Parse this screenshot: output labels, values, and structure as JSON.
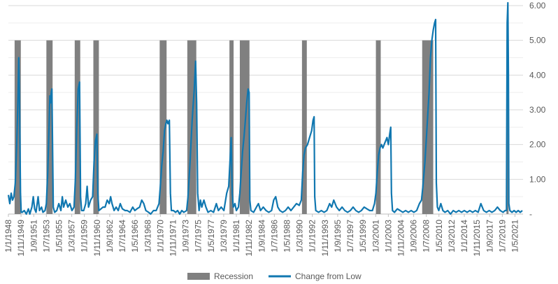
{
  "chart_data": {
    "type": "line",
    "title": "",
    "xlabel": "",
    "ylabel": "",
    "ylim": [
      0,
      6
    ],
    "y_ticks": [
      "6.00",
      "5.00",
      "4.00",
      "3.00",
      "2.00",
      "1.00",
      "-"
    ],
    "y_axis_side": "right",
    "grid": "horizontal",
    "legend_position": "bottom",
    "x_range": [
      1948.0,
      2022.5
    ],
    "x_tick_labels": [
      "1/1/1948",
      "1/11/1949",
      "1/9/1951",
      "1/7/1953",
      "1/5/1955",
      "1/3/1957",
      "1/1/1959",
      "1/11/1960",
      "1/9/1962",
      "1/7/1964",
      "1/5/1966",
      "1/3/1968",
      "1/1/1970",
      "1/11/1971",
      "1/9/1973",
      "1/7/1975",
      "1/5/1977",
      "1/3/1979",
      "1/1/1981",
      "1/11/1982",
      "1/9/1984",
      "1/7/1986",
      "1/5/1988",
      "1/3/1990",
      "1/1/1992",
      "1/11/1993",
      "1/9/1995",
      "1/7/1997",
      "1/5/1999",
      "1/3/2001",
      "1/1/2003",
      "1/11/2004",
      "1/9/2006",
      "1/7/2008",
      "1/5/2010",
      "1/3/2012",
      "1/1/2014",
      "1/11/2015",
      "1/9/2017",
      "1/7/2019",
      "1/5/2021"
    ],
    "x_tick_positions": [
      1948.0,
      1949.83,
      1951.67,
      1953.5,
      1955.33,
      1957.17,
      1959.0,
      1960.83,
      1962.67,
      1964.5,
      1966.33,
      1968.17,
      1970.0,
      1971.83,
      1973.67,
      1975.5,
      1977.33,
      1979.17,
      1981.0,
      1982.83,
      1984.67,
      1986.5,
      1988.33,
      1990.17,
      1992.0,
      1993.83,
      1995.67,
      1997.5,
      1999.33,
      2001.17,
      2003.0,
      2004.83,
      2006.67,
      2008.5,
      2010.33,
      2012.17,
      2014.0,
      2015.83,
      2017.67,
      2019.5,
      2021.33
    ],
    "recessions": [
      {
        "start": 1948.9,
        "end": 1949.8
      },
      {
        "start": 1953.5,
        "end": 1954.4
      },
      {
        "start": 1957.6,
        "end": 1958.4
      },
      {
        "start": 1960.3,
        "end": 1961.1
      },
      {
        "start": 1969.9,
        "end": 1970.9
      },
      {
        "start": 1973.9,
        "end": 1975.2
      },
      {
        "start": 1980.0,
        "end": 1980.6
      },
      {
        "start": 1981.5,
        "end": 1982.9
      },
      {
        "start": 1990.5,
        "end": 1991.2
      },
      {
        "start": 2001.2,
        "end": 2001.9
      },
      {
        "start": 2007.9,
        "end": 2009.5
      },
      {
        "start": 2020.1,
        "end": 2020.4
      }
    ],
    "series": [
      {
        "name": "Change from Low",
        "color": "#1077B0",
        "points": [
          [
            1948.0,
            0.55
          ],
          [
            1948.2,
            0.3
          ],
          [
            1948.4,
            0.6
          ],
          [
            1948.6,
            0.4
          ],
          [
            1948.8,
            0.5
          ],
          [
            1949.0,
            0.9
          ],
          [
            1949.2,
            2.0
          ],
          [
            1949.4,
            3.4
          ],
          [
            1949.5,
            4.5
          ],
          [
            1949.6,
            3.5
          ],
          [
            1949.75,
            0.6
          ],
          [
            1949.85,
            0.05
          ],
          [
            1950.0,
            0.05
          ],
          [
            1950.3,
            0.1
          ],
          [
            1950.6,
            0.0
          ],
          [
            1950.9,
            0.15
          ],
          [
            1951.1,
            0.0
          ],
          [
            1951.4,
            0.2
          ],
          [
            1951.6,
            0.5
          ],
          [
            1951.8,
            0.15
          ],
          [
            1952.0,
            0.05
          ],
          [
            1952.3,
            0.5
          ],
          [
            1952.5,
            0.1
          ],
          [
            1952.8,
            0.2
          ],
          [
            1953.0,
            0.05
          ],
          [
            1953.3,
            0.1
          ],
          [
            1953.5,
            0.3
          ],
          [
            1953.7,
            1.2
          ],
          [
            1953.9,
            2.6
          ],
          [
            1954.0,
            3.4
          ],
          [
            1954.1,
            3.2
          ],
          [
            1954.2,
            3.5
          ],
          [
            1954.3,
            3.6
          ],
          [
            1954.5,
            0.2
          ],
          [
            1954.7,
            0.05
          ],
          [
            1955.0,
            0.1
          ],
          [
            1955.3,
            0.3
          ],
          [
            1955.6,
            0.1
          ],
          [
            1955.8,
            0.5
          ],
          [
            1956.0,
            0.2
          ],
          [
            1956.3,
            0.4
          ],
          [
            1956.6,
            0.2
          ],
          [
            1956.9,
            0.3
          ],
          [
            1957.2,
            0.1
          ],
          [
            1957.5,
            0.2
          ],
          [
            1957.7,
            1.0
          ],
          [
            1957.9,
            2.5
          ],
          [
            1958.1,
            3.6
          ],
          [
            1958.3,
            3.8
          ],
          [
            1958.45,
            0.5
          ],
          [
            1958.6,
            0.1
          ],
          [
            1958.9,
            0.1
          ],
          [
            1959.2,
            0.3
          ],
          [
            1959.4,
            0.8
          ],
          [
            1959.6,
            0.2
          ],
          [
            1959.9,
            0.4
          ],
          [
            1960.2,
            0.5
          ],
          [
            1960.4,
            1.5
          ],
          [
            1960.6,
            2.1
          ],
          [
            1960.8,
            2.3
          ],
          [
            1960.95,
            0.6
          ],
          [
            1961.1,
            0.1
          ],
          [
            1961.4,
            0.15
          ],
          [
            1961.7,
            0.2
          ],
          [
            1962.0,
            0.2
          ],
          [
            1962.3,
            0.4
          ],
          [
            1962.6,
            0.3
          ],
          [
            1962.8,
            0.5
          ],
          [
            1963.0,
            0.3
          ],
          [
            1963.3,
            0.1
          ],
          [
            1963.6,
            0.2
          ],
          [
            1963.9,
            0.1
          ],
          [
            1964.2,
            0.3
          ],
          [
            1964.5,
            0.15
          ],
          [
            1964.9,
            0.1
          ],
          [
            1965.2,
            0.1
          ],
          [
            1965.6,
            0.05
          ],
          [
            1966.0,
            0.2
          ],
          [
            1966.3,
            0.1
          ],
          [
            1966.6,
            0.15
          ],
          [
            1967.0,
            0.2
          ],
          [
            1967.3,
            0.4
          ],
          [
            1967.6,
            0.3
          ],
          [
            1967.9,
            0.1
          ],
          [
            1968.3,
            0.05
          ],
          [
            1968.6,
            0.0
          ],
          [
            1969.0,
            0.1
          ],
          [
            1969.4,
            0.1
          ],
          [
            1969.8,
            0.3
          ],
          [
            1970.0,
            0.8
          ],
          [
            1970.2,
            1.4
          ],
          [
            1970.4,
            1.8
          ],
          [
            1970.6,
            2.4
          ],
          [
            1970.8,
            2.6
          ],
          [
            1970.95,
            2.7
          ],
          [
            1971.1,
            2.6
          ],
          [
            1971.3,
            2.7
          ],
          [
            1971.45,
            0.6
          ],
          [
            1971.6,
            0.1
          ],
          [
            1971.9,
            0.1
          ],
          [
            1972.2,
            0.05
          ],
          [
            1972.5,
            0.1
          ],
          [
            1972.8,
            0.0
          ],
          [
            1973.1,
            0.1
          ],
          [
            1973.4,
            0.05
          ],
          [
            1973.8,
            0.1
          ],
          [
            1974.0,
            0.5
          ],
          [
            1974.3,
            1.5
          ],
          [
            1974.6,
            2.7
          ],
          [
            1974.9,
            3.6
          ],
          [
            1975.1,
            4.4
          ],
          [
            1975.25,
            3.2
          ],
          [
            1975.4,
            0.6
          ],
          [
            1975.6,
            0.1
          ],
          [
            1975.8,
            0.4
          ],
          [
            1976.0,
            0.2
          ],
          [
            1976.3,
            0.4
          ],
          [
            1976.6,
            0.2
          ],
          [
            1976.9,
            0.05
          ],
          [
            1977.3,
            0.1
          ],
          [
            1977.7,
            0.05
          ],
          [
            1978.1,
            0.3
          ],
          [
            1978.4,
            0.1
          ],
          [
            1978.8,
            0.2
          ],
          [
            1979.2,
            0.1
          ],
          [
            1979.6,
            0.6
          ],
          [
            1979.9,
            0.8
          ],
          [
            1980.1,
            1.6
          ],
          [
            1980.25,
            2.2
          ],
          [
            1980.4,
            0.6
          ],
          [
            1980.55,
            0.2
          ],
          [
            1980.8,
            0.3
          ],
          [
            1981.0,
            0.1
          ],
          [
            1981.3,
            0.2
          ],
          [
            1981.5,
            0.6
          ],
          [
            1981.7,
            1.2
          ],
          [
            1981.9,
            1.8
          ],
          [
            1982.1,
            2.2
          ],
          [
            1982.3,
            2.7
          ],
          [
            1982.5,
            3.2
          ],
          [
            1982.7,
            3.6
          ],
          [
            1982.85,
            3.5
          ],
          [
            1982.95,
            0.4
          ],
          [
            1983.1,
            0.1
          ],
          [
            1983.5,
            0.05
          ],
          [
            1983.9,
            0.2
          ],
          [
            1984.2,
            0.3
          ],
          [
            1984.5,
            0.1
          ],
          [
            1984.9,
            0.2
          ],
          [
            1985.3,
            0.1
          ],
          [
            1985.7,
            0.05
          ],
          [
            1986.1,
            0.1
          ],
          [
            1986.4,
            0.4
          ],
          [
            1986.7,
            0.5
          ],
          [
            1987.0,
            0.2
          ],
          [
            1987.3,
            0.1
          ],
          [
            1987.7,
            0.05
          ],
          [
            1988.1,
            0.1
          ],
          [
            1988.5,
            0.2
          ],
          [
            1988.9,
            0.1
          ],
          [
            1989.3,
            0.2
          ],
          [
            1989.7,
            0.3
          ],
          [
            1990.1,
            0.25
          ],
          [
            1990.4,
            0.4
          ],
          [
            1990.6,
            1.2
          ],
          [
            1990.8,
            1.7
          ],
          [
            1991.0,
            1.9
          ],
          [
            1991.3,
            2.0
          ],
          [
            1991.6,
            2.2
          ],
          [
            1991.9,
            2.4
          ],
          [
            1992.1,
            2.7
          ],
          [
            1992.25,
            2.8
          ],
          [
            1992.35,
            0.5
          ],
          [
            1992.5,
            0.1
          ],
          [
            1992.9,
            0.05
          ],
          [
            1993.3,
            0.1
          ],
          [
            1993.7,
            0.05
          ],
          [
            1994.1,
            0.1
          ],
          [
            1994.5,
            0.3
          ],
          [
            1994.8,
            0.2
          ],
          [
            1995.1,
            0.4
          ],
          [
            1995.5,
            0.2
          ],
          [
            1995.9,
            0.1
          ],
          [
            1996.3,
            0.2
          ],
          [
            1996.7,
            0.1
          ],
          [
            1997.1,
            0.05
          ],
          [
            1997.5,
            0.1
          ],
          [
            1997.9,
            0.2
          ],
          [
            1998.3,
            0.1
          ],
          [
            1998.7,
            0.05
          ],
          [
            1999.1,
            0.1
          ],
          [
            1999.5,
            0.2
          ],
          [
            1999.9,
            0.15
          ],
          [
            2000.3,
            0.1
          ],
          [
            2000.7,
            0.1
          ],
          [
            2001.0,
            0.3
          ],
          [
            2001.2,
            0.6
          ],
          [
            2001.4,
            1.2
          ],
          [
            2001.6,
            1.7
          ],
          [
            2001.8,
            1.9
          ],
          [
            2002.0,
            2.0
          ],
          [
            2002.2,
            1.9
          ],
          [
            2002.4,
            2.0
          ],
          [
            2002.6,
            2.1
          ],
          [
            2002.8,
            2.2
          ],
          [
            2003.0,
            2.0
          ],
          [
            2003.2,
            2.3
          ],
          [
            2003.35,
            2.5
          ],
          [
            2003.45,
            0.6
          ],
          [
            2003.6,
            0.1
          ],
          [
            2003.9,
            0.05
          ],
          [
            2004.3,
            0.15
          ],
          [
            2004.7,
            0.1
          ],
          [
            2005.1,
            0.05
          ],
          [
            2005.5,
            0.1
          ],
          [
            2005.9,
            0.05
          ],
          [
            2006.3,
            0.1
          ],
          [
            2006.7,
            0.05
          ],
          [
            2007.1,
            0.1
          ],
          [
            2007.5,
            0.3
          ],
          [
            2007.8,
            0.4
          ],
          [
            2008.0,
            0.8
          ],
          [
            2008.3,
            1.5
          ],
          [
            2008.6,
            2.5
          ],
          [
            2008.9,
            3.5
          ],
          [
            2009.1,
            4.5
          ],
          [
            2009.3,
            5.0
          ],
          [
            2009.5,
            5.3
          ],
          [
            2009.7,
            5.5
          ],
          [
            2009.85,
            5.6
          ],
          [
            2009.95,
            0.9
          ],
          [
            2010.1,
            0.2
          ],
          [
            2010.3,
            0.1
          ],
          [
            2010.6,
            0.3
          ],
          [
            2010.9,
            0.1
          ],
          [
            2011.2,
            0.05
          ],
          [
            2011.6,
            0.1
          ],
          [
            2012.0,
            0.0
          ],
          [
            2012.4,
            0.1
          ],
          [
            2012.8,
            0.05
          ],
          [
            2013.2,
            0.1
          ],
          [
            2013.6,
            0.05
          ],
          [
            2014.0,
            0.1
          ],
          [
            2014.4,
            0.05
          ],
          [
            2014.8,
            0.1
          ],
          [
            2015.2,
            0.05
          ],
          [
            2015.6,
            0.1
          ],
          [
            2016.0,
            0.05
          ],
          [
            2016.4,
            0.3
          ],
          [
            2016.8,
            0.1
          ],
          [
            2017.2,
            0.05
          ],
          [
            2017.6,
            0.1
          ],
          [
            2018.0,
            0.05
          ],
          [
            2018.4,
            0.1
          ],
          [
            2018.8,
            0.2
          ],
          [
            2019.2,
            0.1
          ],
          [
            2019.6,
            0.05
          ],
          [
            2019.9,
            0.1
          ],
          [
            2020.1,
            0.1
          ],
          [
            2020.2,
            5.5
          ],
          [
            2020.3,
            6.2
          ],
          [
            2020.38,
            4.0
          ],
          [
            2020.45,
            0.3
          ],
          [
            2020.6,
            0.1
          ],
          [
            2020.9,
            0.05
          ],
          [
            2021.2,
            0.1
          ],
          [
            2021.5,
            0.05
          ],
          [
            2021.8,
            0.1
          ],
          [
            2022.1,
            0.05
          ],
          [
            2022.4,
            0.1
          ]
        ]
      }
    ],
    "legend": [
      {
        "label": "Recession",
        "color": "#808080",
        "kind": "bar"
      },
      {
        "label": "Change from Low",
        "color": "#1077B0",
        "kind": "line"
      }
    ]
  }
}
